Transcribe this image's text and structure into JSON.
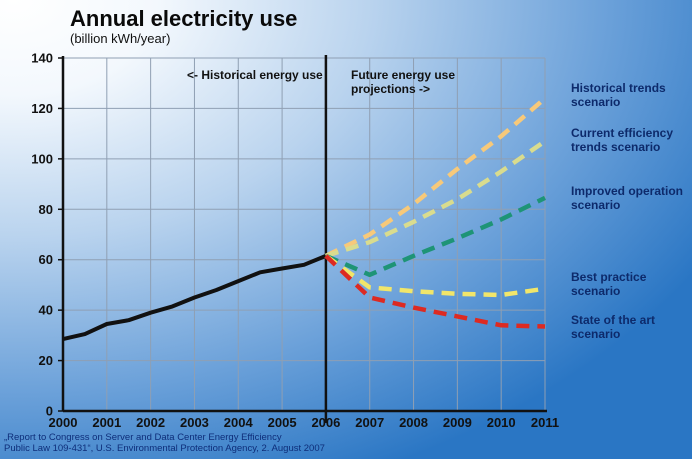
{
  "chart_data": {
    "type": "line",
    "title": "Annual electricity use",
    "subtitle": "(billion kWh/year)",
    "ylim": [
      0,
      140
    ],
    "yticks": [
      0,
      20,
      40,
      60,
      80,
      100,
      120,
      140
    ],
    "xlim": [
      2000,
      2011
    ],
    "categories": [
      "2000",
      "2001",
      "2002",
      "2003",
      "2004",
      "2005",
      "2006",
      "2007",
      "2008",
      "2009",
      "2010",
      "2011"
    ],
    "grid": true,
    "annotations": {
      "historical": "<- Historical energy use",
      "future_line1": "Future energy use",
      "future_line2": "projections ->"
    },
    "series": [
      {
        "id": "historical",
        "label": "",
        "color": "#111111",
        "style": "solid",
        "x": [
          2000,
          2000.5,
          2001,
          2001.5,
          2002,
          2002.5,
          2003,
          2003.5,
          2004,
          2004.5,
          2005,
          2005.5,
          2006
        ],
        "y": [
          28.5,
          30.5,
          34.5,
          36,
          39,
          41.5,
          45,
          48,
          51.5,
          55,
          56.5,
          58,
          61.5
        ]
      },
      {
        "id": "historical-trends",
        "label": [
          "Historical trends",
          "scenario"
        ],
        "color": "#f7c97a",
        "style": "dashed",
        "x": [
          2006,
          2007,
          2008,
          2009,
          2010,
          2011
        ],
        "y": [
          61.5,
          70,
          82,
          96,
          109,
          124
        ]
      },
      {
        "id": "current-efficiency",
        "label": [
          "Current efficiency",
          "trends scenario"
        ],
        "color": "#d9dc8e",
        "style": "dashed",
        "x": [
          2006,
          2007,
          2008,
          2009,
          2010,
          2011
        ],
        "y": [
          61.5,
          67,
          75,
          84,
          95,
          107
        ]
      },
      {
        "id": "improved-operation",
        "label": [
          "Improved operation",
          "scenario"
        ],
        "color": "#1e9476",
        "style": "dashed",
        "x": [
          2006,
          2007,
          2008,
          2009,
          2010,
          2011
        ],
        "y": [
          61.5,
          54,
          61.5,
          68.5,
          76,
          84.5
        ]
      },
      {
        "id": "best-practice",
        "label": [
          "Best practice",
          "scenario"
        ],
        "color": "#f1e66a",
        "style": "dashed",
        "x": [
          2006,
          2007,
          2008,
          2009,
          2010,
          2011
        ],
        "y": [
          61.5,
          49,
          47.5,
          46.5,
          46,
          48.5
        ]
      },
      {
        "id": "state-of-the-art",
        "label": [
          "State of the art",
          "scenario"
        ],
        "color": "#dd2a22",
        "style": "dashed",
        "x": [
          2006,
          2007,
          2008,
          2009,
          2010,
          2011
        ],
        "y": [
          61.5,
          45,
          41,
          37.5,
          34,
          33.5
        ]
      }
    ]
  },
  "source": {
    "line1": "„Report to Congress on Server and Data Center Energy Efficiency",
    "line2": "Public Law 109-431“, U.S. Environmental Protection Agency, 2. August 2007"
  },
  "colors": {
    "background_light": "#ffffff",
    "background_dark": "#1a6fbf",
    "axis": "#111111"
  }
}
